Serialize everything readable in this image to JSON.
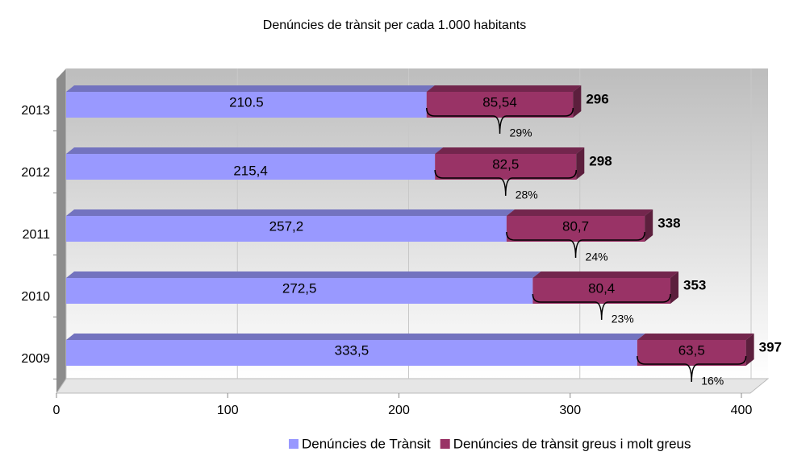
{
  "chart_data": {
    "type": "stacked_barh",
    "title": "Denúncies de trànsit per cada 1.000 habitants",
    "categories": [
      "2013",
      "2012",
      "2011",
      "2010",
      "2009"
    ],
    "series": [
      {
        "name": "Denúncies de Trànsit",
        "color": "#9999ff",
        "values": [
          210.5,
          215.4,
          257.2,
          272.5,
          333.5
        ],
        "value_labels": [
          "210.5",
          "215,4",
          "257,2",
          "272,5",
          "333,5"
        ]
      },
      {
        "name": "Denúncies de trànsit greus i molt greus",
        "color": "#993366",
        "values": [
          85.54,
          82.5,
          80.7,
          80.4,
          63.5
        ],
        "value_labels": [
          "85,54",
          "82,5",
          "80,7",
          "80,4",
          "63,5"
        ]
      }
    ],
    "totals": [
      296,
      298,
      338,
      353,
      397
    ],
    "shares": [
      29,
      28,
      24,
      23,
      16
    ],
    "share_labels": [
      "29%",
      "28%",
      "24%",
      "23%",
      "16%"
    ],
    "xlim": [
      0,
      400
    ],
    "xticks": [
      0,
      100,
      200,
      300,
      400
    ],
    "grid": true,
    "legend": "bottom"
  }
}
